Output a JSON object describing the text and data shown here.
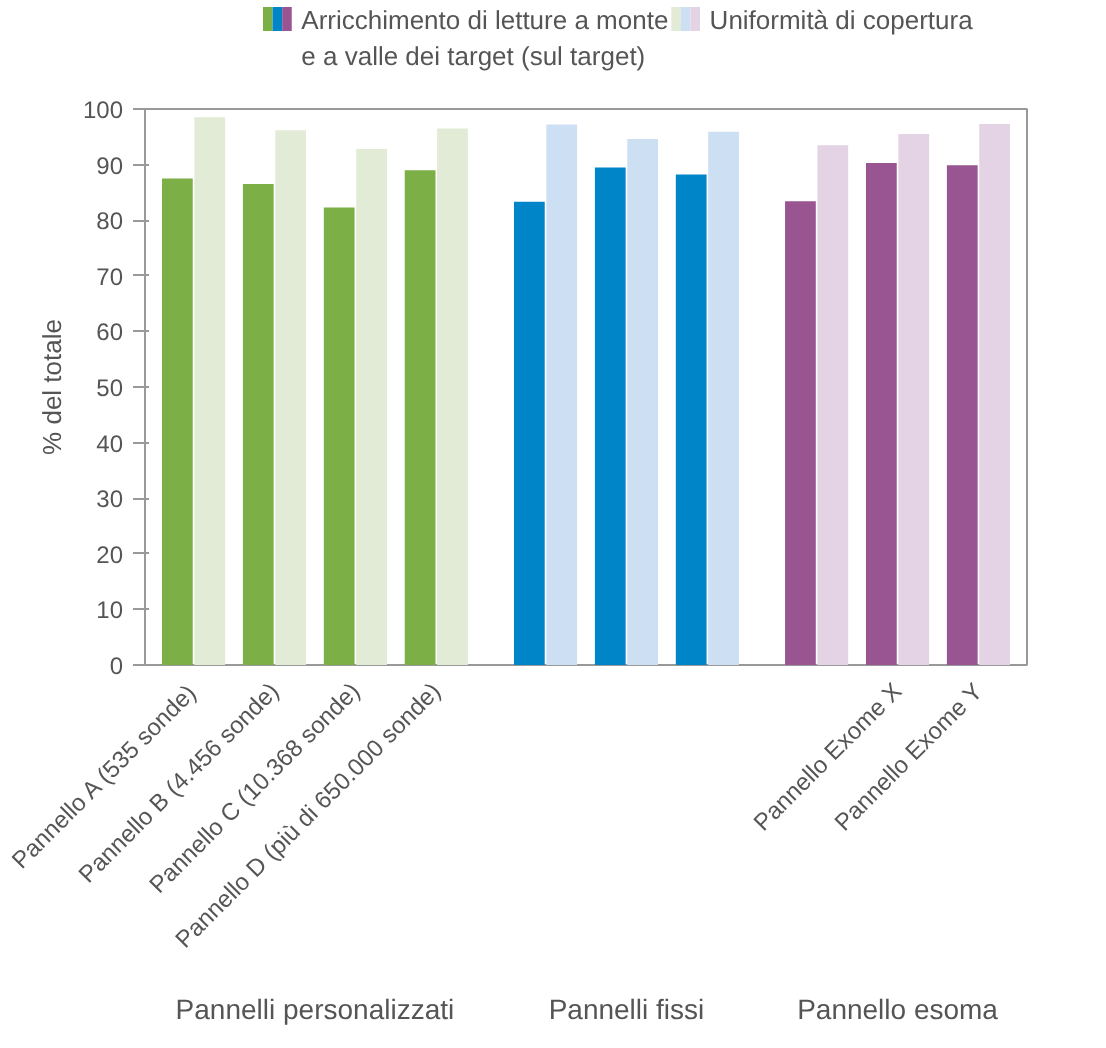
{
  "chart_data": {
    "type": "bar",
    "ylabel": "% del totale",
    "categories": [
      "Pannello A (535 sonde)",
      "Pannello B (4.456 sonde)",
      "Pannello C (10.368 sonde)",
      "Pannello D (più di 650.000 sonde)",
      null,
      null,
      null,
      null,
      "Pannello Exome X",
      "Pannello Exome Y"
    ],
    "series": [
      {
        "name": "Arricchimento di letture a monte\ne a valle dei target (sul target)",
        "colors": [
          "#7cb046",
          "#7cb046",
          "#7cb046",
          "#7cb046",
          "#0086c8",
          "#0086c8",
          "#0086c8",
          "#985591",
          "#985591",
          "#985591"
        ],
        "values": [
          87.5,
          86.5,
          82.3,
          89,
          83.3,
          89.5,
          88.2,
          83.4,
          90.3,
          89.9
        ]
      },
      {
        "name": "Uniformità di copertura",
        "colors": [
          "#e2ebd5",
          "#e2ebd5",
          "#e2ebd5",
          "#e2ebd5",
          "#cddff3",
          "#cddff3",
          "#cddff3",
          "#e3d3e5",
          "#e3d3e5",
          "#e3d3e5"
        ],
        "values": [
          98.5,
          96.2,
          92.8,
          96.5,
          97.2,
          94.6,
          95.9,
          93.5,
          95.5,
          97.3
        ]
      }
    ],
    "ylim": [
      0,
      100
    ],
    "yticks": [
      0,
      10,
      20,
      30,
      40,
      50,
      60,
      70,
      80,
      90,
      100
    ],
    "grid": false,
    "legend": "top",
    "annotations": [
      "Pannelli personalizzati",
      "Pannelli fissi",
      "Pannello esoma"
    ]
  }
}
